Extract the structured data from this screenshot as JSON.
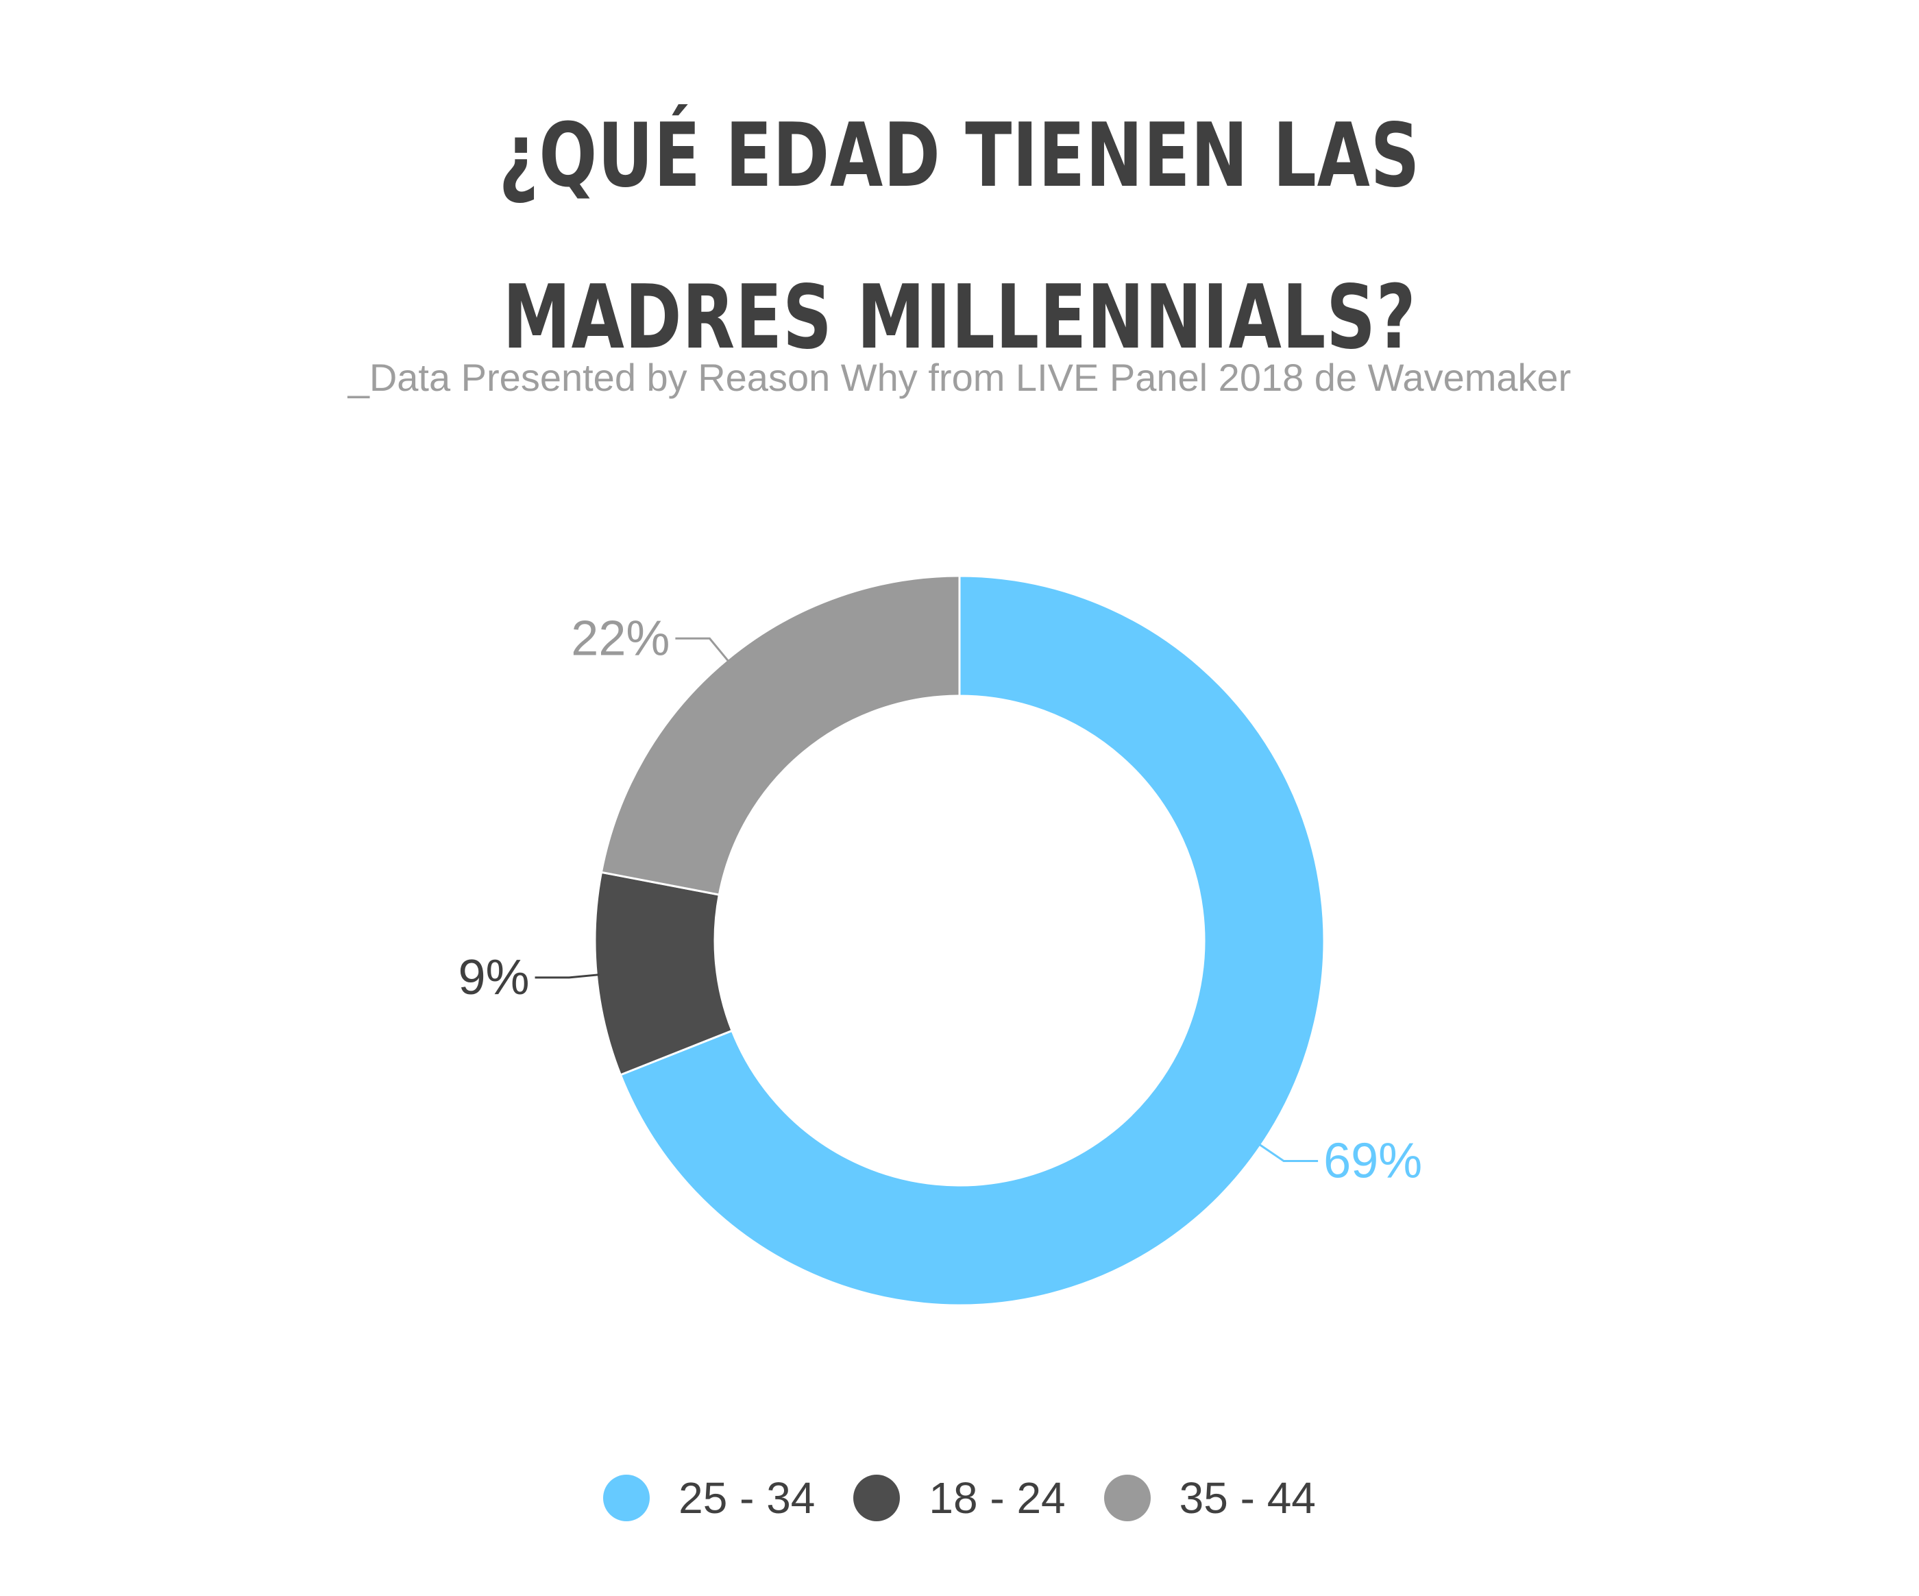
{
  "title_lines": [
    "¿QUÉ EDAD TIENEN LAS",
    "MADRES MILLENNIALS?"
  ],
  "subtitle": "_Data Presented by Reason Why from LIVE Panel 2018 de Wavemaker",
  "chart_data": {
    "type": "pie",
    "categories": [
      "25 - 34",
      "18 - 24",
      "35 - 44"
    ],
    "values": [
      69,
      9,
      22
    ],
    "labels": [
      "69%",
      "9%",
      "22%"
    ],
    "colors": [
      "#66caff",
      "#4d4d4d",
      "#9a9a9a"
    ],
    "label_colors": [
      "#66caff",
      "#404040",
      "#9a9a9a"
    ],
    "legend_position": "bottom"
  }
}
